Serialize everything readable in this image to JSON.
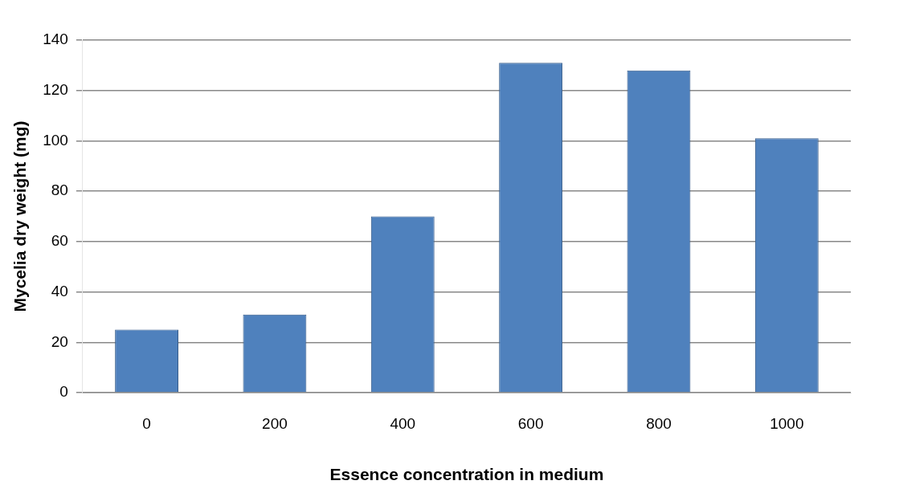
{
  "chart_data": {
    "type": "bar",
    "xlabel": "Essence concentration in medium",
    "ylabel": "Mycelia dry weight (mg)",
    "categories": [
      "0",
      "200",
      "400",
      "600",
      "800",
      "1000"
    ],
    "values": [
      25,
      31,
      70,
      131,
      128,
      101
    ],
    "color": "#4f81bd",
    "ylim": [
      0,
      140
    ],
    "yticks": [
      0,
      20,
      40,
      60,
      80,
      100,
      120,
      140
    ],
    "grid": "y",
    "legend": false
  }
}
